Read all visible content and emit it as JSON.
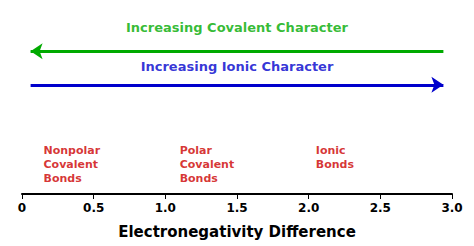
{
  "chart_data": {
    "type": "number_line",
    "xlabel": "Electronegativity Difference",
    "xlim": [
      0,
      3.0
    ],
    "xticks": [
      0,
      0.5,
      {
        "value": 1.0,
        "label": "1.0"
      },
      1.5,
      {
        "value": 2.0,
        "label": "2.0"
      },
      2.5,
      {
        "value": 3.0,
        "label": "3.0"
      }
    ],
    "grid": false,
    "tick_labels": "x",
    "arrows": [
      {
        "text": "Increasing Covalent Character",
        "color": "#00aa00",
        "direction": "left"
      },
      {
        "text": "Increasing Ionic Character",
        "color": "#0000cc",
        "direction": "right"
      }
    ],
    "annotations": [
      {
        "text": "Nonpolar\nCovalent\nBonds",
        "x": 0.15,
        "color": "#cc0000"
      },
      {
        "text": "Polar\nCovalent\nBonds",
        "x": 1.1,
        "color": "#cc0000"
      },
      {
        "text": "Ionic\nBonds",
        "x": 2.05,
        "color": "#cc0000"
      }
    ]
  }
}
